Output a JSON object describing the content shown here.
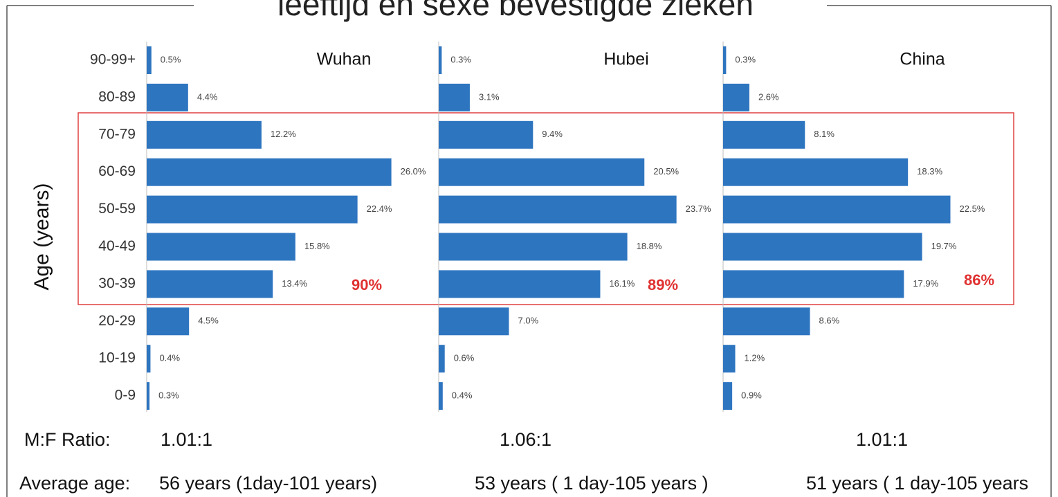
{
  "title": "leeftijd en sexe bevestigde zieken",
  "y_label": "Age (years)",
  "ratio_label": "M:F Ratio:",
  "age_label": "Average age:",
  "chart_data": [
    {
      "type": "bar",
      "title": "Wuhan",
      "color": "#2e75c0",
      "categories": [
        "90-99+",
        "80-89",
        "70-79",
        "60-69",
        "50-59",
        "40-49",
        "30-39",
        "20-29",
        "10-19",
        "0-9"
      ],
      "values": [
        0.5,
        4.4,
        12.2,
        26.0,
        22.4,
        15.8,
        13.4,
        4.5,
        0.4,
        0.3
      ],
      "value_labels": [
        "0.5%",
        "4.4%",
        "12.2%",
        "26.0%",
        "22.4%",
        "15.8%",
        "13.4%",
        "4.5%",
        "0.4%",
        "0.3%"
      ],
      "annotation": "90%",
      "ratio": "1.01:1",
      "average_age": "56 years (1day-101 years)"
    },
    {
      "type": "bar",
      "title": "Hubei",
      "color": "#2e75c0",
      "values": [
        0.3,
        3.1,
        9.4,
        20.5,
        23.7,
        18.8,
        16.1,
        7.0,
        0.6,
        0.4
      ],
      "value_labels": [
        "0.3%",
        "3.1%",
        "9.4%",
        "20.5%",
        "23.7%",
        "18.8%",
        "16.1%",
        "7.0%",
        "0.6%",
        "0.4%"
      ],
      "annotation": "89%",
      "ratio": "1.06:1",
      "average_age": "53 years ( 1 day-105 years )"
    },
    {
      "type": "bar",
      "title": "China",
      "color": "#2e75c0",
      "values": [
        0.3,
        2.6,
        8.1,
        18.3,
        22.5,
        19.7,
        17.9,
        8.6,
        1.2,
        0.9
      ],
      "value_labels": [
        "0.3%",
        "2.6%",
        "8.1%",
        "18.3%",
        "22.5%",
        "19.7%",
        "17.9%",
        "8.6%",
        "1.2%",
        "0.9%"
      ],
      "annotation": "86%",
      "ratio": "1.01:1",
      "average_age": "51 years ( 1 day-105 years"
    }
  ]
}
